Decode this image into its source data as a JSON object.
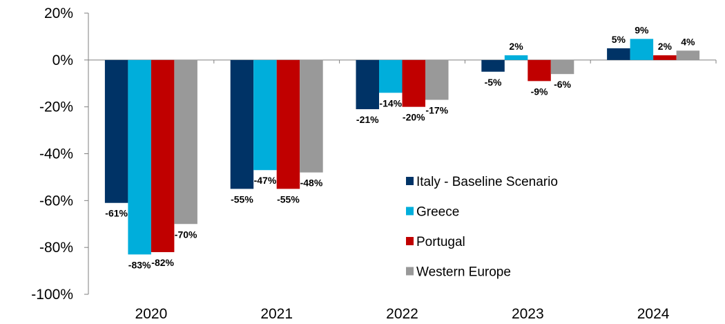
{
  "chart_data": {
    "type": "bar",
    "categories": [
      "2020",
      "2021",
      "2022",
      "2023",
      "2024"
    ],
    "series": [
      {
        "name": "Italy - Baseline Scenario",
        "color": "#003366",
        "values": [
          -61,
          -55,
          -21,
          -5,
          5
        ],
        "labels": [
          "-61%",
          "-55%",
          "-21%",
          "-5%",
          "5%"
        ]
      },
      {
        "name": "Greece",
        "color": "#00AEDB",
        "values": [
          -83,
          -47,
          -14,
          2,
          9
        ],
        "labels": [
          "-83%",
          "-47%",
          "-14%",
          "2%",
          "9%"
        ]
      },
      {
        "name": "Portugal",
        "color": "#C00000",
        "values": [
          -82,
          -55,
          -20,
          -9,
          2
        ],
        "labels": [
          "-82%",
          "-55%",
          "-20%",
          "-9%",
          "2%"
        ]
      },
      {
        "name": "Western Europe",
        "color": "#999999",
        "values": [
          -70,
          -48,
          -17,
          -6,
          4
        ],
        "labels": [
          "-70%",
          "-48%",
          "-17%",
          "-6%",
          "4%"
        ]
      }
    ],
    "y_ticks": [
      20,
      0,
      -20,
      -40,
      -60,
      -80,
      -100
    ],
    "y_tick_labels": [
      "20%",
      "0%",
      "-20%",
      "-40%",
      "-60%",
      "-80%",
      "-100%"
    ],
    "ylim": [
      -100,
      20
    ],
    "title": "",
    "xlabel": "",
    "ylabel": "",
    "grid": false,
    "legend_position": "center-right"
  }
}
